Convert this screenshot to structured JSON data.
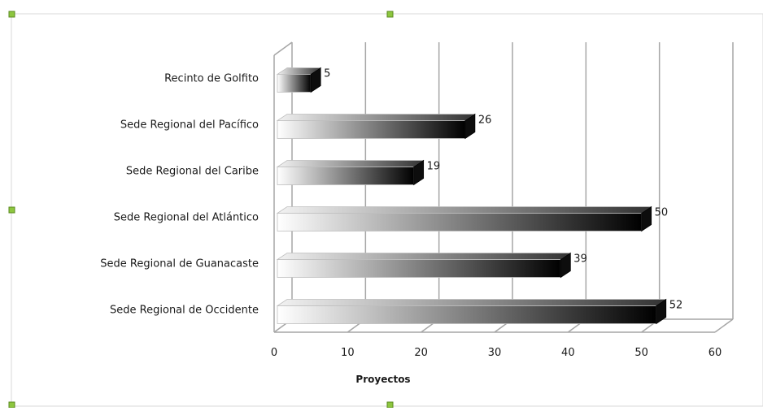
{
  "chart_data": {
    "type": "bar",
    "orientation": "horizontal",
    "categories": [
      "Recinto de Golfito",
      "Sede Regional del Pacífico",
      "Sede Regional del Caribe",
      "Sede Regional del Atlántico",
      "Sede Regional de Guanacaste",
      "Sede Regional de Occidente"
    ],
    "values": [
      5,
      26,
      19,
      50,
      39,
      52
    ],
    "xlabel": "Proyectos",
    "ylabel": "",
    "xlim": [
      0,
      60
    ],
    "xticks": [
      "0",
      "10",
      "20",
      "30",
      "40",
      "50",
      "60"
    ],
    "grid": "vertical",
    "legend": "none",
    "style": "3d-gradient",
    "colors": {
      "bar_start": "#ffffff",
      "bar_end": "#000000",
      "grid": "#a6a6a6",
      "handle": "#8dc63f"
    }
  }
}
